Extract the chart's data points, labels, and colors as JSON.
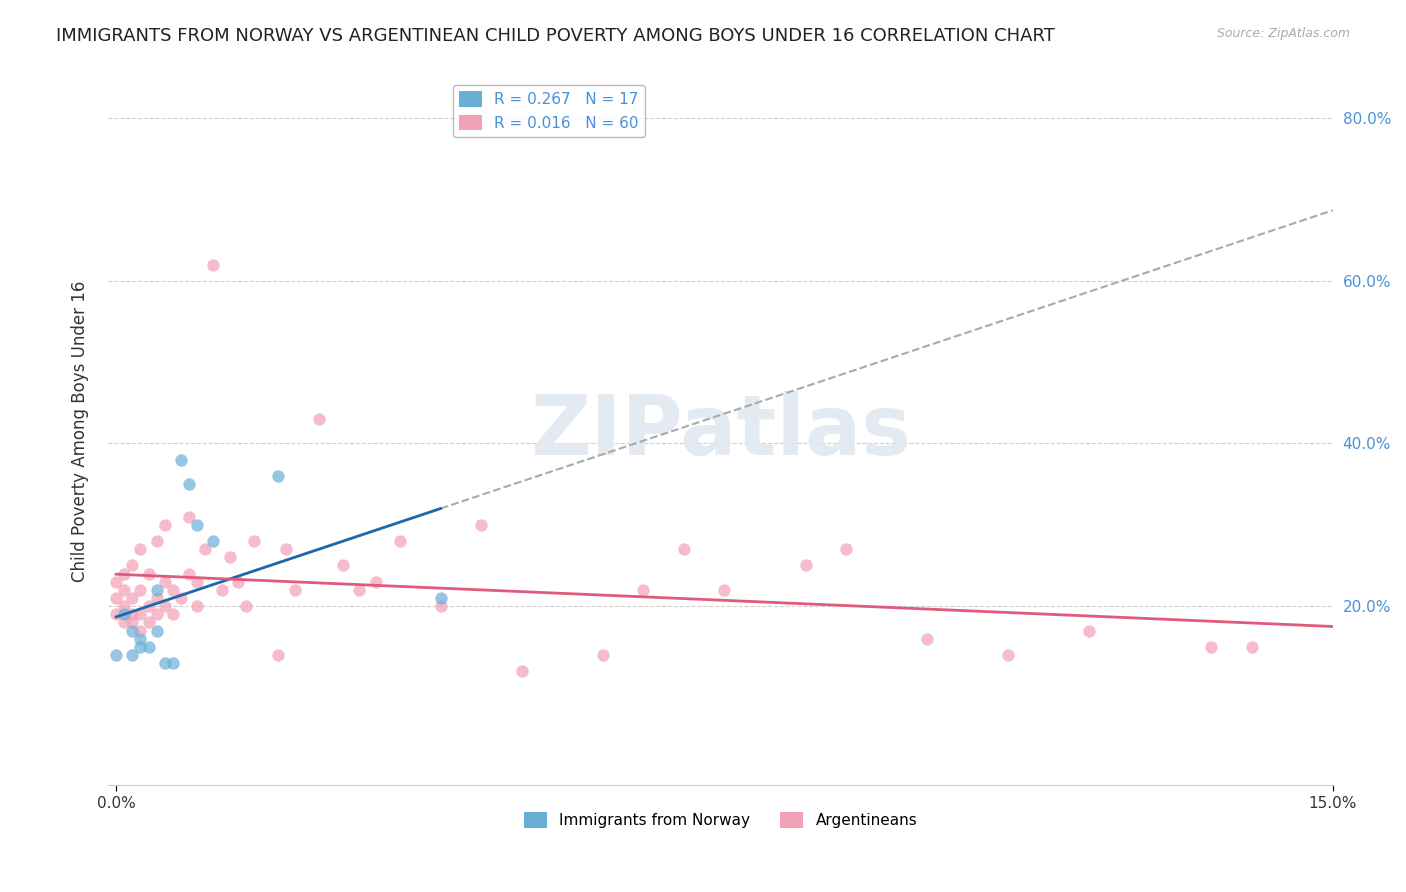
{
  "title": "IMMIGRANTS FROM NORWAY VS ARGENTINEAN CHILD POVERTY AMONG BOYS UNDER 16 CORRELATION CHART",
  "source": "Source: ZipAtlas.com",
  "ylabel": "Child Poverty Among Boys Under 16",
  "xlim": [
    0.0,
    0.15
  ],
  "ylim": [
    -0.02,
    0.85
  ],
  "norway_R": "0.267",
  "norway_N": "17",
  "argentina_R": "0.016",
  "argentina_N": "60",
  "norway_color": "#6aaed6",
  "argentina_color": "#f4a0b5",
  "norway_line_color": "#2166ac",
  "argentina_line_color": "#e05a7a",
  "dash_line_color": "#aaaaaa",
  "watermark_text": "ZIPatlas",
  "legend_items": [
    "Immigrants from Norway",
    "Argentineans"
  ],
  "norway_scatter_x": [
    0.0,
    0.001,
    0.002,
    0.002,
    0.003,
    0.003,
    0.004,
    0.005,
    0.005,
    0.006,
    0.007,
    0.008,
    0.009,
    0.01,
    0.012,
    0.02,
    0.04
  ],
  "norway_scatter_y": [
    0.14,
    0.19,
    0.14,
    0.17,
    0.15,
    0.16,
    0.15,
    0.17,
    0.22,
    0.13,
    0.13,
    0.38,
    0.35,
    0.3,
    0.28,
    0.36,
    0.21
  ],
  "argentina_scatter_x": [
    0.0,
    0.0,
    0.0,
    0.001,
    0.001,
    0.001,
    0.001,
    0.002,
    0.002,
    0.002,
    0.002,
    0.003,
    0.003,
    0.003,
    0.003,
    0.004,
    0.004,
    0.004,
    0.005,
    0.005,
    0.005,
    0.006,
    0.006,
    0.006,
    0.007,
    0.007,
    0.008,
    0.009,
    0.009,
    0.01,
    0.01,
    0.011,
    0.012,
    0.013,
    0.014,
    0.015,
    0.016,
    0.017,
    0.02,
    0.021,
    0.022,
    0.025,
    0.028,
    0.03,
    0.032,
    0.035,
    0.04,
    0.045,
    0.05,
    0.06,
    0.065,
    0.07,
    0.075,
    0.085,
    0.09,
    0.1,
    0.11,
    0.12,
    0.135,
    0.14
  ],
  "argentina_scatter_y": [
    0.19,
    0.21,
    0.23,
    0.18,
    0.2,
    0.22,
    0.24,
    0.18,
    0.19,
    0.21,
    0.25,
    0.17,
    0.19,
    0.22,
    0.27,
    0.18,
    0.2,
    0.24,
    0.19,
    0.21,
    0.28,
    0.2,
    0.23,
    0.3,
    0.19,
    0.22,
    0.21,
    0.24,
    0.31,
    0.2,
    0.23,
    0.27,
    0.62,
    0.22,
    0.26,
    0.23,
    0.2,
    0.28,
    0.14,
    0.27,
    0.22,
    0.43,
    0.25,
    0.22,
    0.23,
    0.28,
    0.2,
    0.3,
    0.12,
    0.14,
    0.22,
    0.27,
    0.22,
    0.25,
    0.27,
    0.16,
    0.14,
    0.17,
    0.15,
    0.15
  ],
  "grid_color": "#d0d0d0",
  "background_color": "#ffffff",
  "title_fontsize": 13,
  "axis_label_fontsize": 12,
  "tick_fontsize": 11,
  "right_tick_color": "#4a90d9",
  "bottom_tick_color": "#333333"
}
